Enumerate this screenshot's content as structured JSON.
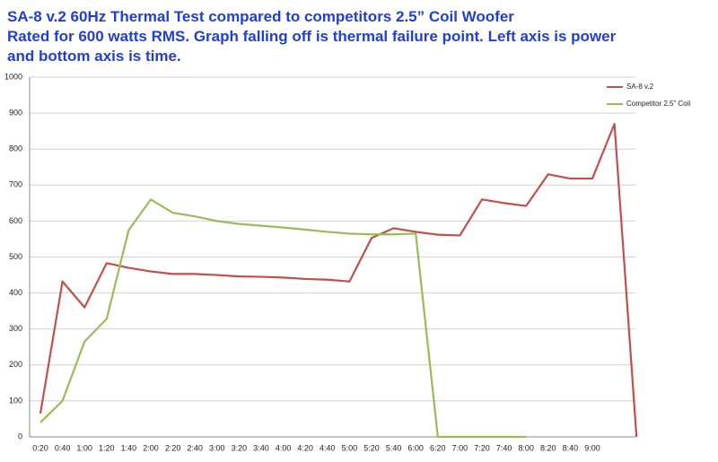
{
  "chart_data": {
    "type": "line",
    "title": "SA-8 v.2 60Hz Thermal Test compared to competitors 2.5” Coil Woofer",
    "subtitle": "Rated for 600 watts RMS. Graph falling off is thermal failure point. Left axis is power and bottom axis is time.",
    "categories": [
      "0:20",
      "0:40",
      "1:00",
      "1:20",
      "1:40",
      "2:00",
      "2:20",
      "2:40",
      "3:00",
      "3:20",
      "3:40",
      "4:00",
      "4:20",
      "4:40",
      "5:00",
      "5:20",
      "5:40",
      "6:00",
      "6:20",
      "7:00",
      "7:20",
      "7:40",
      "8:00",
      "8:20",
      "8:40",
      "9:00",
      null,
      null
    ],
    "series": [
      {
        "name": "SA-8 v.2",
        "color": "#c0504d",
        "values": [
          65,
          432,
          360,
          483,
          470,
          460,
          453,
          453,
          450,
          446,
          445,
          443,
          439,
          437,
          432,
          553,
          580,
          570,
          562,
          560,
          660,
          650,
          642,
          730,
          718,
          718,
          870,
          0
        ]
      },
      {
        "name": "Competitor 2.5” Coil",
        "color": "#9bbb59",
        "values": [
          40,
          100,
          265,
          328,
          575,
          660,
          623,
          613,
          600,
          592,
          587,
          582,
          576,
          570,
          565,
          563,
          563,
          565,
          0,
          0,
          0,
          0,
          0,
          null,
          null,
          null,
          null,
          null
        ]
      }
    ],
    "ylim": [
      0,
      1000
    ],
    "yticks": [
      0,
      100,
      200,
      300,
      400,
      500,
      600,
      700,
      800,
      900,
      1000
    ],
    "grid": true,
    "legend": "top-right"
  }
}
